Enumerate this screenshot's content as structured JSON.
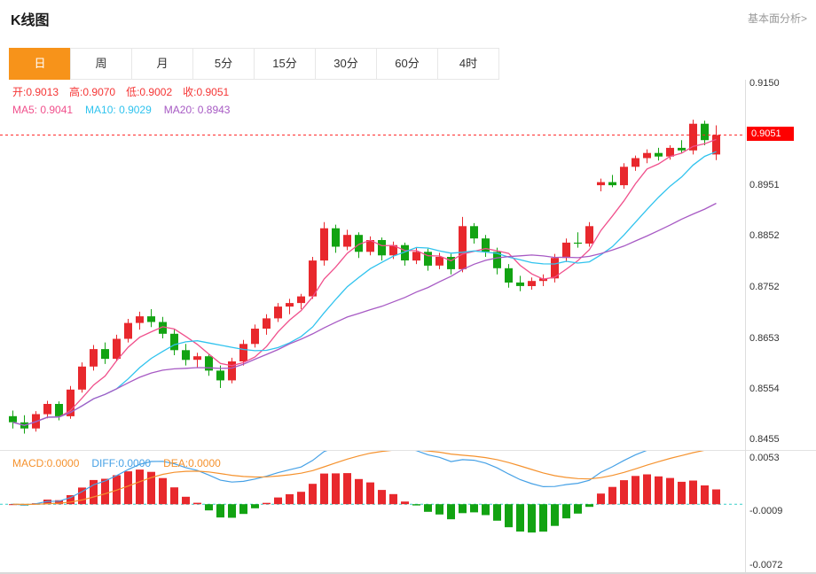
{
  "header": {
    "title": "K线图",
    "link": "基本面分析>"
  },
  "tabs": {
    "items": [
      {
        "label": "日",
        "name": "day",
        "active": true
      },
      {
        "label": "周",
        "name": "week",
        "active": false
      },
      {
        "label": "月",
        "name": "month",
        "active": false
      },
      {
        "label": "5分",
        "name": "5min",
        "active": false
      },
      {
        "label": "15分",
        "name": "15min",
        "active": false
      },
      {
        "label": "30分",
        "name": "30min",
        "active": false
      },
      {
        "label": "60分",
        "name": "60min",
        "active": false
      },
      {
        "label": "4时",
        "name": "4hour",
        "active": false
      }
    ]
  },
  "legend_main": {
    "open": "开:0.9013",
    "high": "高:0.9070",
    "low": "低:0.9002",
    "close": "收:0.9051"
  },
  "legend_ma": {
    "ma5": "MA5: 0.9041",
    "ma10": "MA10: 0.9029",
    "ma20": "MA20: 0.8943"
  },
  "legend_macd": {
    "macd": "MACD:0.0000",
    "diff": "DIFF:0.0000",
    "dea": "DEA:0.0000"
  },
  "chart_data": {
    "type": "candlestick",
    "title": "K线图",
    "interval_selected": "日",
    "current": {
      "open": 0.9013,
      "high": 0.907,
      "low": 0.9002,
      "close": 0.9051
    },
    "ma_values": {
      "MA5": 0.9041,
      "MA10": 0.9029,
      "MA20": 0.8943
    },
    "current_price": 0.9051,
    "current_tick_index": 1,
    "y_axis_ticks": [
      0.915,
      0.9051,
      0.8951,
      0.8852,
      0.8752,
      0.8653,
      0.8554,
      0.8455
    ],
    "ylim": [
      0.8436,
      0.9159
    ],
    "candles": [
      [
        0.8502,
        0.8513,
        0.8478,
        0.849
      ],
      [
        0.849,
        0.8504,
        0.8468,
        0.8478
      ],
      [
        0.8478,
        0.8512,
        0.8472,
        0.8506
      ],
      [
        0.8506,
        0.8532,
        0.8498,
        0.8526
      ],
      [
        0.8526,
        0.8531,
        0.8494,
        0.8502
      ],
      [
        0.8502,
        0.8561,
        0.8497,
        0.8554
      ],
      [
        0.8554,
        0.8607,
        0.8548,
        0.8599
      ],
      [
        0.8599,
        0.8641,
        0.8591,
        0.8633
      ],
      [
        0.8633,
        0.8646,
        0.8604,
        0.8614
      ],
      [
        0.8614,
        0.8661,
        0.8609,
        0.8653
      ],
      [
        0.8653,
        0.8692,
        0.8646,
        0.8684
      ],
      [
        0.8684,
        0.8706,
        0.8671,
        0.8697
      ],
      [
        0.8697,
        0.8711,
        0.8676,
        0.8686
      ],
      [
        0.8686,
        0.8696,
        0.8654,
        0.8663
      ],
      [
        0.8663,
        0.8671,
        0.8621,
        0.8631
      ],
      [
        0.8631,
        0.8643,
        0.8601,
        0.8612
      ],
      [
        0.8612,
        0.8626,
        0.8596,
        0.8619
      ],
      [
        0.8619,
        0.8623,
        0.8581,
        0.8591
      ],
      [
        0.8591,
        0.8601,
        0.8557,
        0.8572
      ],
      [
        0.8572,
        0.8616,
        0.8566,
        0.8609
      ],
      [
        0.8609,
        0.8651,
        0.8601,
        0.8643
      ],
      [
        0.8643,
        0.8681,
        0.8636,
        0.8673
      ],
      [
        0.8673,
        0.8701,
        0.8661,
        0.8693
      ],
      [
        0.8693,
        0.8723,
        0.8686,
        0.8716
      ],
      [
        0.8716,
        0.8731,
        0.8701,
        0.8723
      ],
      [
        0.8723,
        0.8741,
        0.8711,
        0.8736
      ],
      [
        0.8736,
        0.8813,
        0.8731,
        0.8806
      ],
      [
        0.8806,
        0.8881,
        0.8796,
        0.8869
      ],
      [
        0.8869,
        0.8876,
        0.8821,
        0.8833
      ],
      [
        0.8833,
        0.8866,
        0.8826,
        0.8856
      ],
      [
        0.8856,
        0.8861,
        0.8811,
        0.8823
      ],
      [
        0.8823,
        0.8853,
        0.8816,
        0.8846
      ],
      [
        0.8846,
        0.8851,
        0.8806,
        0.8816
      ],
      [
        0.8816,
        0.8843,
        0.8809,
        0.8836
      ],
      [
        0.8836,
        0.8841,
        0.8796,
        0.8806
      ],
      [
        0.8806,
        0.8831,
        0.8799,
        0.8823
      ],
      [
        0.8823,
        0.8829,
        0.8786,
        0.8796
      ],
      [
        0.8796,
        0.8821,
        0.8789,
        0.8813
      ],
      [
        0.8813,
        0.8819,
        0.8779,
        0.8789
      ],
      [
        0.8789,
        0.8891,
        0.8783,
        0.8873
      ],
      [
        0.8873,
        0.8879,
        0.8839,
        0.8849
      ],
      [
        0.8849,
        0.8856,
        0.8813,
        0.8823
      ],
      [
        0.8823,
        0.8831,
        0.8779,
        0.8791
      ],
      [
        0.8791,
        0.8799,
        0.8753,
        0.8763
      ],
      [
        0.8763,
        0.8776,
        0.8746,
        0.8756
      ],
      [
        0.8756,
        0.8773,
        0.8749,
        0.8766
      ],
      [
        0.8766,
        0.8779,
        0.8756,
        0.8771
      ],
      [
        0.8771,
        0.8819,
        0.8763,
        0.8811
      ],
      [
        0.8811,
        0.8849,
        0.8803,
        0.8841
      ],
      [
        0.8841,
        0.8861,
        0.8831,
        0.8839
      ],
      [
        0.8839,
        0.8881,
        0.8833,
        0.8873
      ],
      [
        0.8953,
        0.8966,
        0.8941,
        0.8959
      ],
      [
        0.8959,
        0.8973,
        0.8949,
        0.8953
      ],
      [
        0.8953,
        0.8996,
        0.8946,
        0.8989
      ],
      [
        0.8989,
        0.9011,
        0.8981,
        0.9006
      ],
      [
        0.9006,
        0.9023,
        0.8996,
        0.9016
      ],
      [
        0.9016,
        0.9026,
        0.9001,
        0.9009
      ],
      [
        0.9009,
        0.9031,
        0.9003,
        0.9026
      ],
      [
        0.9026,
        0.9041,
        0.9016,
        0.9021
      ],
      [
        0.9021,
        0.9081,
        0.9013,
        0.9073
      ],
      [
        0.9073,
        0.9079,
        0.9031,
        0.9041
      ],
      [
        0.9013,
        0.907,
        0.9002,
        0.9051
      ]
    ],
    "macd": {
      "legend_values": {
        "MACD": "0.0000",
        "DIFF": "0.0000",
        "DEA": "0.0000"
      },
      "y_axis_ticks": [
        0.0053,
        -0.0009,
        -0.0072
      ],
      "ylim": [
        -0.0078,
        0.0062
      ]
    },
    "colors": {
      "up": "#e8282d",
      "down": "#12a312",
      "ma5": "#f0508c",
      "ma10": "#30c3ee",
      "ma20": "#a75ac4",
      "diff": "#46a1e6",
      "dea": "#f5922e",
      "current_line": "#ff2222",
      "current_badge_bg": "#fe0000",
      "zero_line": "#35cfc9",
      "ohlc_text": "#f53535",
      "macd_text": "#f5922e",
      "tab_active_bg": "#f7931a"
    }
  }
}
